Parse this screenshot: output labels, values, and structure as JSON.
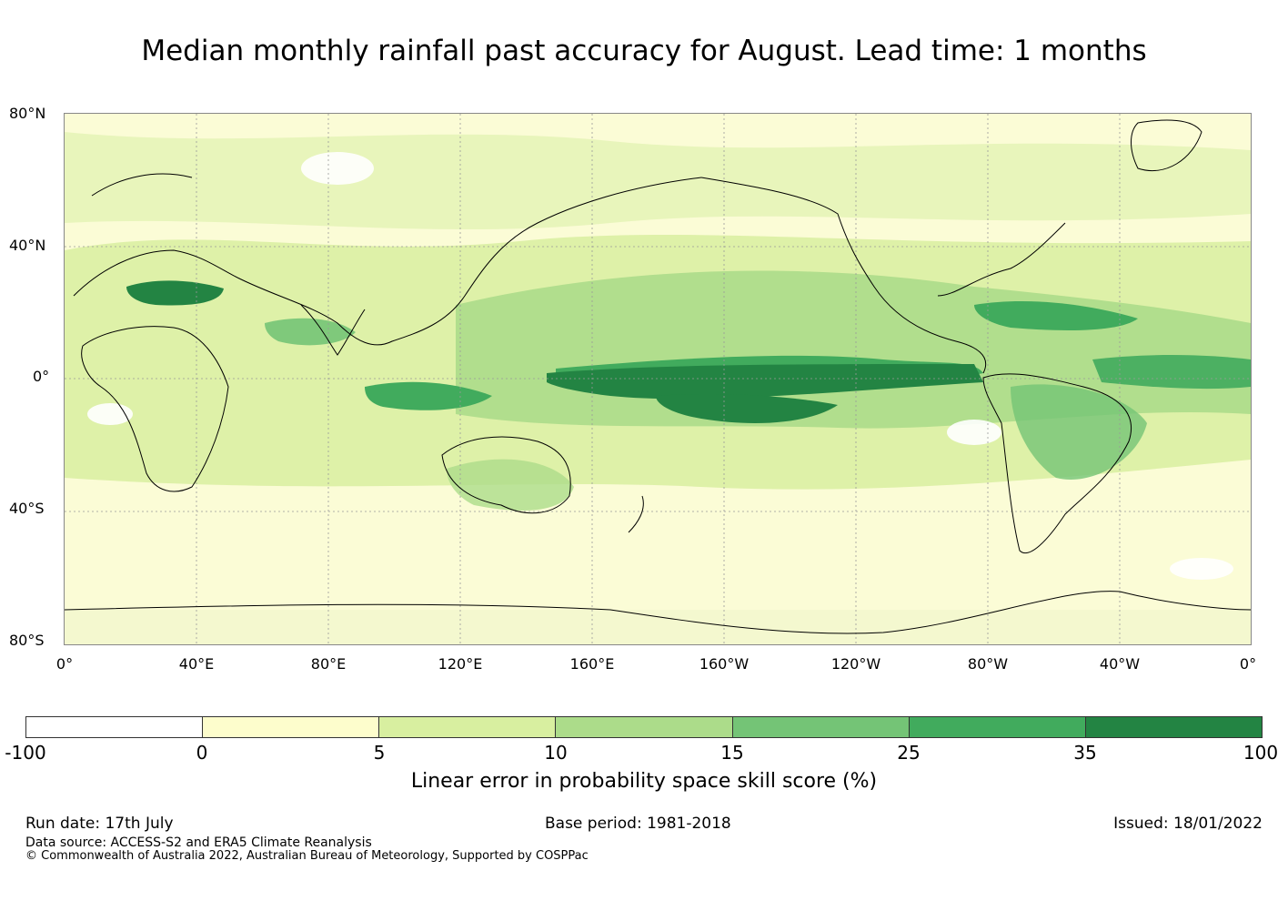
{
  "title": "Median monthly rainfall past accuracy for August. Lead time: 1 months",
  "lat_labels": [
    "80°N",
    "40°N",
    "0°",
    "40°S",
    "80°S"
  ],
  "lon_labels": [
    "0°",
    "40°E",
    "80°E",
    "120°E",
    "160°E",
    "160°W",
    "120°W",
    "80°W",
    "40°W",
    "0°"
  ],
  "colorbar": {
    "ticks": [
      "-100",
      "0",
      "5",
      "10",
      "15",
      "25",
      "35",
      "100"
    ],
    "colors": [
      "#ffffff",
      "#fdfdcc",
      "#d8efa0",
      "#acdc8a",
      "#74c476",
      "#41ab5d",
      "#238443"
    ],
    "label": "Linear error in probability space skill score (%)"
  },
  "footer": {
    "run_date": "Run date: 17th July",
    "base_period": "Base period: 1981-2018",
    "issued": "Issued: 18/01/2022",
    "data_source": "Data source: ACCESS-S2 and ERA5 Climate Reanalysis",
    "copyright": "© Commonwealth of Australia 2022, Australian Bureau of Meteorology, Supported by COSPPac"
  }
}
